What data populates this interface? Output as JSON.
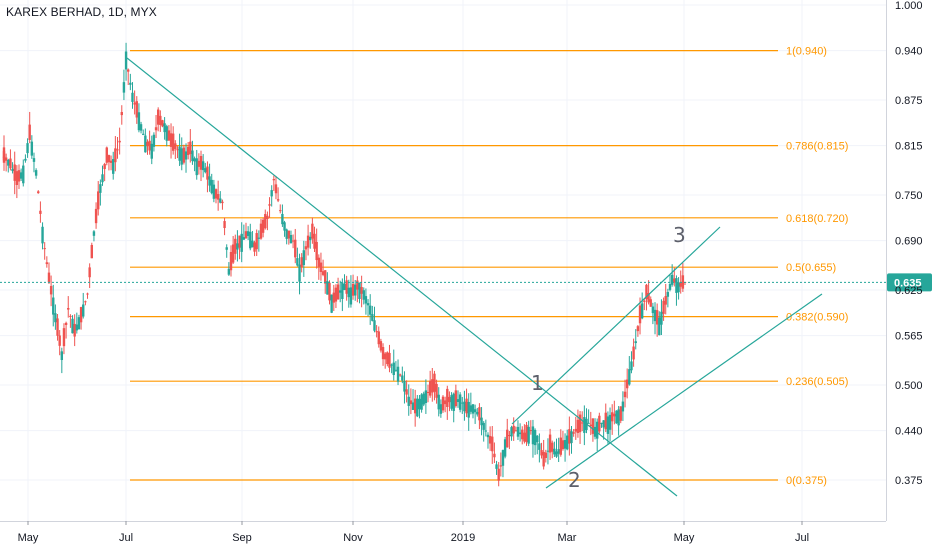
{
  "header": {
    "title": "KAREX BERHAD, 1D, MYX"
  },
  "colors": {
    "up": "#26a69a",
    "down": "#ef5350",
    "fib": "#ff9800",
    "trend": "#26a69a",
    "price_tag": "#26a69a",
    "grid": "#f0f3fa",
    "axis": "#131722"
  },
  "chart_data": {
    "type": "candlestick",
    "title": "KAREX BERHAD, 1D, MYX",
    "y_axis": {
      "ticks": [
        "1.000",
        "0.940",
        "0.875",
        "0.815",
        "0.750",
        "0.690",
        "0.625",
        "0.565",
        "0.500",
        "0.440",
        "0.375"
      ],
      "range": [
        0.31,
        1.0
      ]
    },
    "x_axis": {
      "ticks": [
        "May",
        "Jul",
        "Sep",
        "Nov",
        "2019",
        "Mar",
        "May",
        "Jul"
      ]
    },
    "last_price": {
      "value": 0.635,
      "label": "0.635"
    },
    "fib_levels": [
      {
        "ratio": "1",
        "price": 0.94,
        "label": "1(0.940)"
      },
      {
        "ratio": "0.786",
        "price": 0.815,
        "label": "0.786(0.815)"
      },
      {
        "ratio": "0.618",
        "price": 0.72,
        "label": "0.618(0.720)"
      },
      {
        "ratio": "0.5",
        "price": 0.655,
        "label": "0.5(0.655)"
      },
      {
        "ratio": "0.382",
        "price": 0.59,
        "label": "0.382(0.590)"
      },
      {
        "ratio": "0.236",
        "price": 0.505,
        "label": "0.236(0.505)"
      },
      {
        "ratio": "0",
        "price": 0.375,
        "label": "0(0.375)"
      }
    ],
    "wave_labels": [
      "1",
      "2",
      "3"
    ],
    "series": [
      {
        "name": "price",
        "close_path": [
          [
            "Apr-20",
            0.8
          ],
          [
            "Apr-25",
            0.79
          ],
          [
            "May-01",
            0.77
          ],
          [
            "May-07",
            0.78
          ],
          [
            "May-10",
            0.83
          ],
          [
            "May-14",
            0.78
          ],
          [
            "May-17",
            0.7
          ],
          [
            "May-21",
            0.64
          ],
          [
            "May-24",
            0.59
          ],
          [
            "May-28",
            0.54
          ],
          [
            "Jun-01",
            0.6
          ],
          [
            "Jun-05",
            0.57
          ],
          [
            "Jun-08",
            0.59
          ],
          [
            "Jun-12",
            0.62
          ],
          [
            "Jun-15",
            0.7
          ],
          [
            "Jun-19",
            0.76
          ],
          [
            "Jun-22",
            0.8
          ],
          [
            "Jun-26",
            0.79
          ],
          [
            "Jun-29",
            0.82
          ],
          [
            "Jul-03",
            0.93
          ],
          [
            "Jul-06",
            0.88
          ],
          [
            "Jul-10",
            0.85
          ],
          [
            "Jul-13",
            0.82
          ],
          [
            "Jul-17",
            0.81
          ],
          [
            "Jul-20",
            0.85
          ],
          [
            "Jul-24",
            0.84
          ],
          [
            "Jul-27",
            0.82
          ],
          [
            "Jul-31",
            0.81
          ],
          [
            "Aug-03",
            0.8
          ],
          [
            "Aug-07",
            0.81
          ],
          [
            "Aug-10",
            0.79
          ],
          [
            "Aug-14",
            0.79
          ],
          [
            "Aug-17",
            0.77
          ],
          [
            "Aug-21",
            0.75
          ],
          [
            "Aug-24",
            0.74
          ],
          [
            "Aug-28",
            0.65
          ],
          [
            "Aug-31",
            0.68
          ],
          [
            "Sep-04",
            0.69
          ],
          [
            "Sep-07",
            0.7
          ],
          [
            "Sep-11",
            0.68
          ],
          [
            "Sep-14",
            0.7
          ],
          [
            "Sep-18",
            0.72
          ],
          [
            "Sep-21",
            0.77
          ],
          [
            "Sep-25",
            0.73
          ],
          [
            "Sep-28",
            0.7
          ],
          [
            "Oct-02",
            0.69
          ],
          [
            "Oct-05",
            0.65
          ],
          [
            "Oct-09",
            0.68
          ],
          [
            "Oct-12",
            0.7
          ],
          [
            "Oct-16",
            0.66
          ],
          [
            "Oct-19",
            0.64
          ],
          [
            "Oct-23",
            0.61
          ],
          [
            "Oct-26",
            0.62
          ],
          [
            "Oct-30",
            0.63
          ],
          [
            "Nov-02",
            0.62
          ],
          [
            "Nov-06",
            0.63
          ],
          [
            "Nov-09",
            0.62
          ],
          [
            "Nov-13",
            0.6
          ],
          [
            "Nov-16",
            0.57
          ],
          [
            "Nov-20",
            0.54
          ],
          [
            "Nov-23",
            0.53
          ],
          [
            "Nov-27",
            0.52
          ],
          [
            "Nov-30",
            0.51
          ],
          [
            "Dec-04",
            0.48
          ],
          [
            "Dec-07",
            0.47
          ],
          [
            "Dec-11",
            0.48
          ],
          [
            "Dec-14",
            0.49
          ],
          [
            "Dec-18",
            0.5
          ],
          [
            "Dec-21",
            0.47
          ],
          [
            "Dec-25",
            0.48
          ],
          [
            "Dec-28",
            0.48
          ],
          [
            "Jan-01",
            0.48
          ],
          [
            "Jan-04",
            0.47
          ],
          [
            "Jan-08",
            0.47
          ],
          [
            "Jan-11",
            0.46
          ],
          [
            "Jan-15",
            0.44
          ],
          [
            "Jan-18",
            0.42
          ],
          [
            "Jan-22",
            0.38
          ],
          [
            "Jan-25",
            0.42
          ],
          [
            "Jan-29",
            0.44
          ],
          [
            "Feb-01",
            0.44
          ],
          [
            "Feb-05",
            0.43
          ],
          [
            "Feb-08",
            0.44
          ],
          [
            "Feb-12",
            0.43
          ],
          [
            "Feb-15",
            0.4
          ],
          [
            "Feb-19",
            0.42
          ],
          [
            "Feb-22",
            0.41
          ],
          [
            "Feb-26",
            0.42
          ],
          [
            "Mar-01",
            0.43
          ],
          [
            "Mar-05",
            0.44
          ],
          [
            "Mar-08",
            0.45
          ],
          [
            "Mar-12",
            0.45
          ],
          [
            "Mar-15",
            0.44
          ],
          [
            "Mar-19",
            0.45
          ],
          [
            "Mar-22",
            0.45
          ],
          [
            "Mar-26",
            0.46
          ],
          [
            "Mar-29",
            0.46
          ],
          [
            "Apr-02",
            0.5
          ],
          [
            "Apr-05",
            0.54
          ],
          [
            "Apr-09",
            0.59
          ],
          [
            "Apr-12",
            0.62
          ],
          [
            "Apr-16",
            0.6
          ],
          [
            "Apr-19",
            0.58
          ],
          [
            "Apr-23",
            0.61
          ],
          [
            "Apr-26",
            0.64
          ],
          [
            "Apr-30",
            0.63
          ],
          [
            "May-03",
            0.635
          ]
        ]
      }
    ]
  }
}
